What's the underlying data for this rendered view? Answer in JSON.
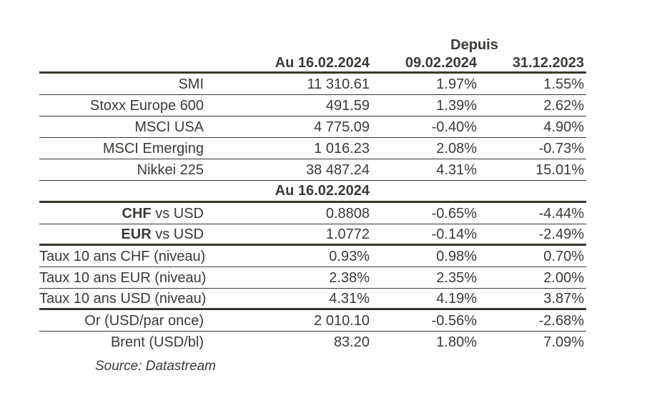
{
  "table": {
    "header": {
      "depuis": "Depuis",
      "asof": "Au 16.02.2024",
      "since1": "09.02.2024",
      "since2": "31.12.2023"
    },
    "section2_header": "Au 16.02.2024",
    "indices": [
      {
        "label": "SMI",
        "asof": "11 310.61",
        "since1": "1.97%",
        "since2": "1.55%"
      },
      {
        "label": "Stoxx Europe 600",
        "asof": "491.59",
        "since1": "1.39%",
        "since2": "2.62%"
      },
      {
        "label": "MSCI USA",
        "asof": "4 775.09",
        "since1": "-0.40%",
        "since2": "4.90%"
      },
      {
        "label": "MSCI Emerging",
        "asof": "1 016.23",
        "since1": "2.08%",
        "since2": "-0.73%"
      },
      {
        "label": "Nikkei 225",
        "asof": "38 487.24",
        "since1": "4.31%",
        "since2": "15.01%"
      }
    ],
    "fx": [
      {
        "label_bold": "CHF",
        "label_rest": " vs USD",
        "asof": "0.8808",
        "since1": "-0.65%",
        "since2": "-4.44%"
      },
      {
        "label_bold": "EUR",
        "label_rest": " vs USD",
        "asof": "1.0772",
        "since1": "-0.14%",
        "since2": "-2.49%"
      }
    ],
    "rates": [
      {
        "label": "Taux 10 ans CHF (niveau)",
        "asof": "0.93%",
        "since1": "0.98%",
        "since2": "0.70%"
      },
      {
        "label": "Taux 10 ans EUR (niveau)",
        "asof": "2.38%",
        "since1": "2.35%",
        "since2": "2.00%"
      },
      {
        "label": "Taux 10 ans USD (niveau)",
        "asof": "4.31%",
        "since1": "4.19%",
        "since2": "3.87%"
      }
    ],
    "commodities": [
      {
        "label": "Or (USD/par once)",
        "asof": "2 010.10",
        "since1": "-0.56%",
        "since2": "-2.68%"
      },
      {
        "label": "Brent (USD/bl)",
        "asof": "83.20",
        "since1": "1.80%",
        "since2": "7.09%"
      }
    ],
    "source_label": "Source: Datastream"
  },
  "colors": {
    "text": "#3d3935",
    "line": "#3b362c"
  }
}
